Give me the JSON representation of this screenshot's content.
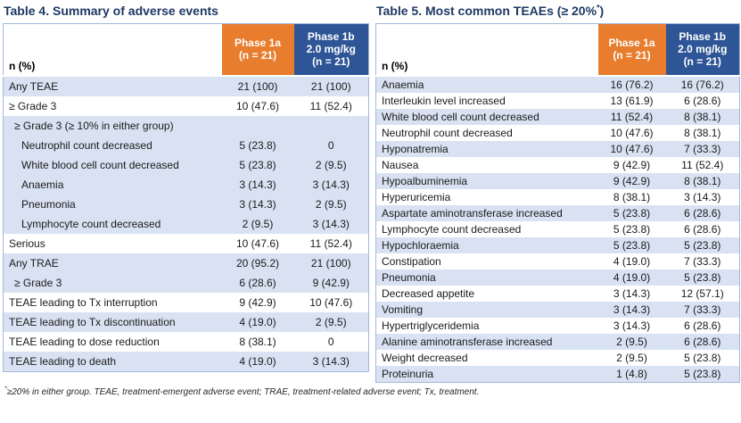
{
  "colors": {
    "header_orange": "#e87d2e",
    "header_blue": "#2e5596",
    "row_shade": "#d9e2f3",
    "title_navy": "#1f3864",
    "table_border": "#a3b8dc"
  },
  "tables": [
    {
      "title_prefix": "Table 4. Summary of adverse events",
      "title_sup": "",
      "title_suffix": "",
      "col_header_label": "n (%)",
      "col_phase1a": {
        "line1": "Phase 1a",
        "line2": "(n = 21)",
        "line3": ""
      },
      "col_phase1b": {
        "line1": "Phase 1b",
        "line2": "2.0 mg/kg",
        "line3": "(n = 21)"
      },
      "rows": [
        {
          "label": "Any TEAE",
          "v1": "21 (100)",
          "v2": "21 (100)",
          "shade": true,
          "indent": 0
        },
        {
          "label": "≥ Grade 3",
          "v1": "10 (47.6)",
          "v2": "11 (52.4)",
          "shade": false,
          "indent": 0
        },
        {
          "label": "≥ Grade 3 (≥ 10% in either group)",
          "v1": "",
          "v2": "",
          "shade": true,
          "indent": 1
        },
        {
          "label": "Neutrophil count decreased",
          "v1": "5 (23.8)",
          "v2": "0",
          "shade": true,
          "indent": 2
        },
        {
          "label": "White blood cell count decreased",
          "v1": "5 (23.8)",
          "v2": "2 (9.5)",
          "shade": true,
          "indent": 2
        },
        {
          "label": "Anaemia",
          "v1": "3 (14.3)",
          "v2": "3 (14.3)",
          "shade": true,
          "indent": 2
        },
        {
          "label": "Pneumonia",
          "v1": "3 (14.3)",
          "v2": "2 (9.5)",
          "shade": true,
          "indent": 2
        },
        {
          "label": "Lymphocyte count decreased",
          "v1": "2 (9.5)",
          "v2": "3 (14.3)",
          "shade": true,
          "indent": 2
        },
        {
          "label": "Serious",
          "v1": "10 (47.6)",
          "v2": "11 (52.4)",
          "shade": false,
          "indent": 0
        },
        {
          "label": "Any TRAE",
          "v1": "20 (95.2)",
          "v2": "21 (100)",
          "shade": true,
          "indent": 0
        },
        {
          "label": "≥ Grade 3",
          "v1": "6 (28.6)",
          "v2": "9 (42.9)",
          "shade": true,
          "indent": 1
        },
        {
          "label": "TEAE leading to Tx interruption",
          "v1": "9 (42.9)",
          "v2": "10 (47.6)",
          "shade": false,
          "indent": 0
        },
        {
          "label": "TEAE leading to Tx discontinuation",
          "v1": "4 (19.0)",
          "v2": "2 (9.5)",
          "shade": true,
          "indent": 0
        },
        {
          "label": "TEAE leading to dose reduction",
          "v1": "8 (38.1)",
          "v2": "0",
          "shade": false,
          "indent": 0
        },
        {
          "label": "TEAE leading to death",
          "v1": "4 (19.0)",
          "v2": "3 (14.3)",
          "shade": true,
          "indent": 0
        }
      ]
    },
    {
      "title_prefix": "Table 5. Most common TEAEs (≥ 20%",
      "title_sup": "*",
      "title_suffix": ")",
      "col_header_label": "n (%)",
      "col_phase1a": {
        "line1": "Phase 1a",
        "line2": "(n = 21)",
        "line3": ""
      },
      "col_phase1b": {
        "line1": "Phase 1b",
        "line2": "2.0 mg/kg",
        "line3": "(n = 21)"
      },
      "rows": [
        {
          "label": "Anaemia",
          "v1": "16 (76.2)",
          "v2": "16 (76.2)",
          "shade": true,
          "indent": 0
        },
        {
          "label": "Interleukin level increased",
          "v1": "13 (61.9)",
          "v2": "6 (28.6)",
          "shade": false,
          "indent": 0
        },
        {
          "label": "White blood cell count decreased",
          "v1": "11 (52.4)",
          "v2": "8 (38.1)",
          "shade": true,
          "indent": 0
        },
        {
          "label": "Neutrophil count decreased",
          "v1": "10 (47.6)",
          "v2": "8 (38.1)",
          "shade": false,
          "indent": 0
        },
        {
          "label": "Hyponatremia",
          "v1": "10 (47.6)",
          "v2": "7 (33.3)",
          "shade": true,
          "indent": 0
        },
        {
          "label": "Nausea",
          "v1": "9 (42.9)",
          "v2": "11 (52.4)",
          "shade": false,
          "indent": 0
        },
        {
          "label": "Hypoalbuminemia",
          "v1": "9 (42.9)",
          "v2": "8 (38.1)",
          "shade": true,
          "indent": 0
        },
        {
          "label": "Hyperuricemia",
          "v1": "8 (38.1)",
          "v2": "3 (14.3)",
          "shade": false,
          "indent": 0
        },
        {
          "label": "Aspartate aminotransferase increased",
          "v1": "5 (23.8)",
          "v2": "6 (28.6)",
          "shade": true,
          "indent": 0
        },
        {
          "label": "Lymphocyte count decreased",
          "v1": "5 (23.8)",
          "v2": "6 (28.6)",
          "shade": false,
          "indent": 0
        },
        {
          "label": "Hypochloraemia",
          "v1": "5 (23.8)",
          "v2": "5 (23.8)",
          "shade": true,
          "indent": 0
        },
        {
          "label": "Constipation",
          "v1": "4 (19.0)",
          "v2": "7 (33.3)",
          "shade": false,
          "indent": 0
        },
        {
          "label": "Pneumonia",
          "v1": "4 (19.0)",
          "v2": "5 (23.8)",
          "shade": true,
          "indent": 0
        },
        {
          "label": "Decreased appetite",
          "v1": "3 (14.3)",
          "v2": "12 (57.1)",
          "shade": false,
          "indent": 0
        },
        {
          "label": "Vomiting",
          "v1": "3 (14.3)",
          "v2": "7 (33.3)",
          "shade": true,
          "indent": 0
        },
        {
          "label": "Hypertriglyceridemia",
          "v1": "3 (14.3)",
          "v2": "6 (28.6)",
          "shade": false,
          "indent": 0
        },
        {
          "label": "Alanine aminotransferase increased",
          "v1": "2 (9.5)",
          "v2": "6 (28.6)",
          "shade": true,
          "indent": 0
        },
        {
          "label": "Weight decreased",
          "v1": "2 (9.5)",
          "v2": "5 (23.8)",
          "shade": false,
          "indent": 0
        },
        {
          "label": "Proteinuria",
          "v1": "1 (4.8)",
          "v2": "5 (23.8)",
          "shade": true,
          "indent": 0
        }
      ]
    }
  ],
  "footnote": {
    "marker": "*",
    "text": "≥20% in either group. TEAE, treatment-emergent adverse event; TRAE, treatment-related adverse event; Tx, treatment."
  }
}
